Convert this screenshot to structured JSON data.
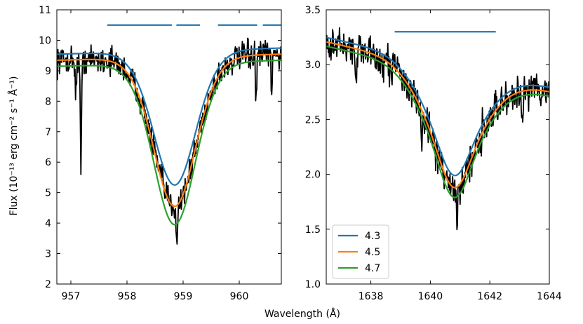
{
  "chart_data": {
    "type": "line",
    "ylabel": "Flux (10⁻¹³ erg cm⁻² s⁻¹ Å⁻¹)",
    "xlabel": "Wavelength (Å)",
    "legend": {
      "placement": "lower-left of right panel",
      "entries": [
        {
          "label": "4.3",
          "color": "#1f77b4"
        },
        {
          "label": "4.5",
          "color": "#ff7f0e"
        },
        {
          "label": "4.7",
          "color": "#2ca02c"
        }
      ]
    },
    "panels": [
      {
        "name": "left",
        "xlim": [
          956.75,
          960.75
        ],
        "ylim": [
          2,
          11
        ],
        "xticks": [
          957,
          958,
          959,
          960
        ],
        "yticks": [
          2,
          3,
          4,
          5,
          6,
          7,
          8,
          9,
          10,
          11
        ],
        "line": {
          "center": 958.85,
          "continuum": 9.45,
          "sigma": 0.42,
          "deep_sigma": 0.3,
          "slope": 0.05
        },
        "models": [
          {
            "label": "4.3",
            "color": "#1f77b4",
            "depth": 4.4,
            "continuum_offset": 0.2
          },
          {
            "label": "4.5",
            "color": "#ff7f0e",
            "depth": 4.9,
            "continuum_offset": 0.0
          },
          {
            "label": "4.7",
            "color": "#2ca02c",
            "depth": 5.3,
            "continuum_offset": -0.2
          }
        ],
        "fit_windows": [
          [
            957.65,
            958.8
          ],
          [
            958.88,
            959.3
          ],
          [
            959.62,
            960.32
          ],
          [
            960.42,
            960.75
          ]
        ],
        "fit_window_y": 10.5,
        "observed": {
          "noise": 0.35,
          "dips": [
            [
              957.18,
              3.6
            ],
            [
              957.09,
              1.2
            ],
            [
              958.89,
              1.2
            ],
            [
              960.3,
              1.5
            ],
            [
              960.58,
              1.3
            ]
          ]
        }
      },
      {
        "name": "right",
        "xlim": [
          1636.5,
          1644
        ],
        "ylim": [
          1.0,
          3.5
        ],
        "xticks": [
          1638,
          1640,
          1642,
          1644
        ],
        "yticks": [
          1.0,
          1.5,
          2.0,
          2.5,
          3.0,
          3.5
        ],
        "line": {
          "center": 1640.8,
          "continuum": 2.95,
          "sigma": 1.0,
          "deep_sigma": 0.45,
          "slope": -0.06
        },
        "models": [
          {
            "label": "4.3",
            "color": "#1f77b4",
            "depth": 1.0,
            "continuum_offset": 0.04
          },
          {
            "label": "4.5",
            "color": "#ff7f0e",
            "depth": 1.07,
            "continuum_offset": 0.0
          },
          {
            "label": "4.7",
            "color": "#2ca02c",
            "depth": 1.12,
            "continuum_offset": -0.04
          }
        ],
        "fit_windows": [
          [
            1638.8,
            1642.2
          ]
        ],
        "fit_window_y": 3.3,
        "observed": {
          "noise": 0.13,
          "dips": [
            [
              1637.5,
              0.35
            ],
            [
              1639.7,
              0.4
            ],
            [
              1640.9,
              0.45
            ],
            [
              1643.1,
              0.3
            ]
          ]
        }
      }
    ],
    "observed_color": "#000000"
  }
}
